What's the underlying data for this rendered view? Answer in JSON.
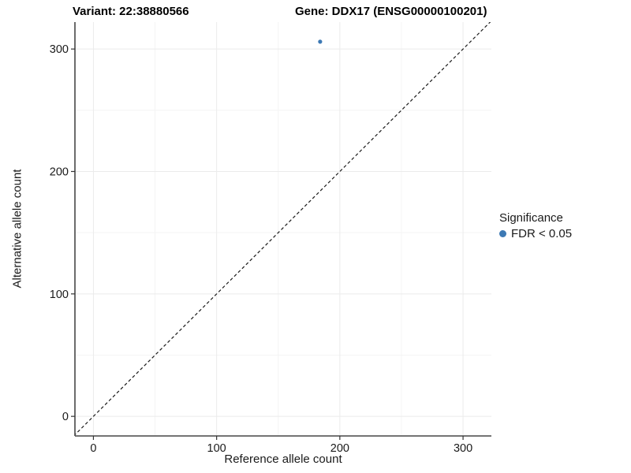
{
  "chart_data": {
    "type": "scatter",
    "title_left": "Variant: 22:38880566",
    "title_right": "Gene: DDX17 (ENSG00000100201)",
    "xlabel": "Reference allele count",
    "ylabel": "Alternative allele count",
    "xlim": [
      -15,
      323
    ],
    "ylim": [
      -16,
      322
    ],
    "x_ticks": [
      0,
      100,
      200,
      300
    ],
    "y_ticks": [
      0,
      100,
      200,
      300
    ],
    "x_minor_ticks": [
      50,
      150,
      250
    ],
    "y_minor_ticks": [
      50,
      150,
      250
    ],
    "grid": true,
    "identity_line": {
      "type": "dashed",
      "slope": 1,
      "intercept": 0
    },
    "points": [
      {
        "x": 184,
        "y": 306,
        "series": "FDR < 0.05"
      }
    ],
    "legend": {
      "position": "right",
      "title": "Significance",
      "items": [
        {
          "label": "FDR < 0.05",
          "color": "#3d79b4"
        }
      ]
    },
    "colors": {
      "point": "#3d79b4",
      "identity_line": "#1a1a1a",
      "grid_major": "#ebebeb",
      "grid_minor": "#f4f4f4",
      "axis_line": "#474747",
      "tick": "#333333",
      "text": "#1a1a1a",
      "background": "#ffffff"
    }
  }
}
